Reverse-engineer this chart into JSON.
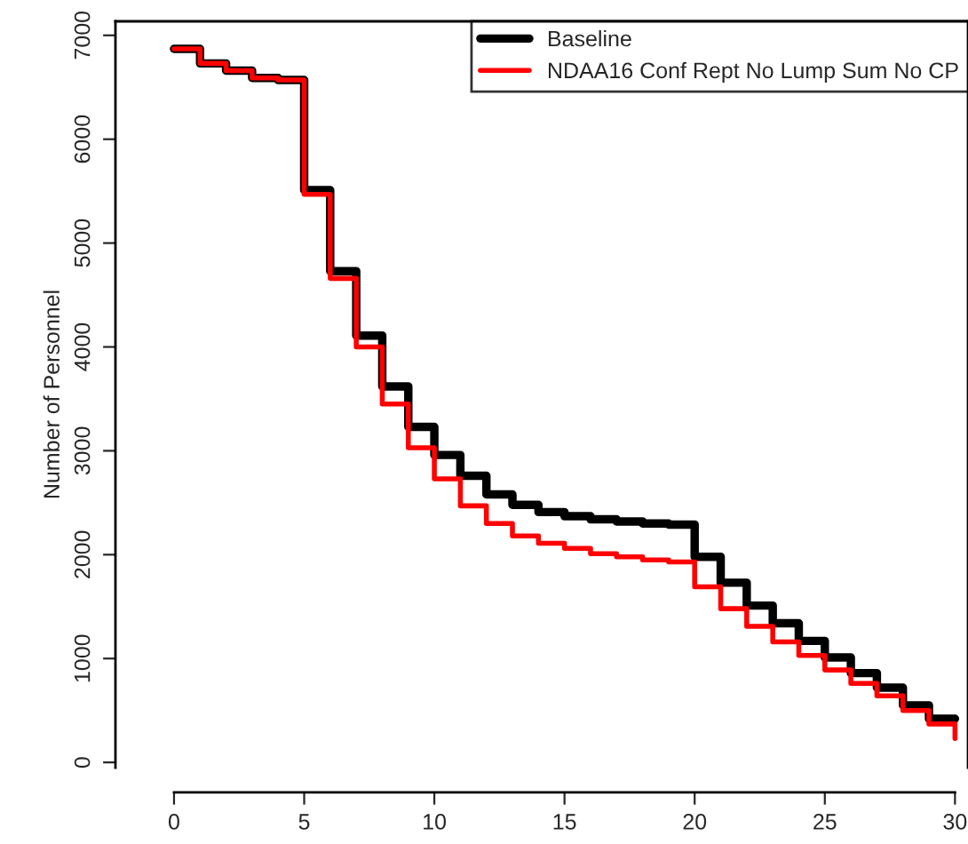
{
  "chart_data": {
    "type": "step",
    "ylabel": "Number of Personnel",
    "x": [
      0,
      1,
      2,
      3,
      4,
      5,
      6,
      7,
      8,
      9,
      10,
      11,
      12,
      13,
      14,
      15,
      16,
      17,
      18,
      19,
      20,
      21,
      22,
      23,
      24,
      25,
      26,
      27,
      28,
      29,
      30
    ],
    "series": [
      {
        "name": "Baseline",
        "color": "#000000",
        "values": [
          6870,
          6730,
          6660,
          6590,
          6570,
          5510,
          4730,
          4110,
          3620,
          3230,
          2960,
          2760,
          2580,
          2480,
          2410,
          2370,
          2340,
          2320,
          2300,
          2290,
          1980,
          1730,
          1510,
          1340,
          1170,
          1010,
          860,
          720,
          550,
          420,
          420
        ]
      },
      {
        "name": "NDAA16 Conf Rept No Lump Sum No CP",
        "color": "#ff0000",
        "values": [
          6870,
          6730,
          6660,
          6590,
          6570,
          5470,
          4660,
          4000,
          3450,
          3030,
          2730,
          2470,
          2300,
          2180,
          2110,
          2060,
          2010,
          1980,
          1950,
          1930,
          1690,
          1480,
          1310,
          1160,
          1030,
          890,
          760,
          640,
          500,
          370,
          230
        ]
      }
    ],
    "xlim": [
      -2.25,
      30.5
    ],
    "ylim": [
      -50,
      7135
    ],
    "xticks": [
      0,
      5,
      10,
      15,
      20,
      25,
      30
    ],
    "yticks": [
      0,
      1000,
      2000,
      3000,
      4000,
      5000,
      6000,
      7000
    ],
    "grid": false,
    "legend": "top right",
    "line_style": "solid",
    "marker": "none"
  }
}
